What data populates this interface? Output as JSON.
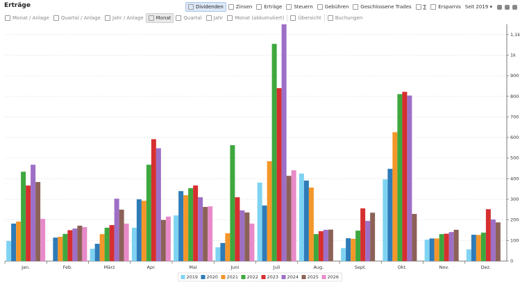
{
  "header": {
    "title": "Erträge"
  },
  "tabs": [
    "Dividenden",
    "Zinsen",
    "Erträge",
    "Steuern",
    "Gebühren",
    "Geschlossene Trades",
    "∑",
    "Ersparnis"
  ],
  "period": "Seit 2019",
  "views": [
    "Monat / Anlage",
    "Quartal / Anlage",
    "Jahr / Anlage",
    "Monat",
    "Quartal",
    "Jahr",
    "Monat (akkumuliert)",
    "Übersicht",
    "Buchungen"
  ],
  "chart_data": {
    "type": "bar",
    "categories": [
      "Jan.",
      "Feb.",
      "März",
      "Apr.",
      "Mai",
      "Juni",
      "Juli",
      "Aug.",
      "Sept.",
      "Okt.",
      "Nov.",
      "Dez."
    ],
    "series": [
      {
        "name": "2019",
        "color": "#7fd3f2",
        "values": [
          98,
          null,
          60,
          162,
          222,
          67,
          381,
          425,
          63,
          397,
          104,
          57
        ]
      },
      {
        "name": "2020",
        "color": "#2e7bb8",
        "values": [
          182,
          114,
          84,
          300,
          340,
          88,
          270,
          391,
          111,
          448,
          110,
          128
        ]
      },
      {
        "name": "2021",
        "color": "#f5962a",
        "values": [
          192,
          118,
          131,
          293,
          320,
          135,
          485,
          357,
          108,
          626,
          110,
          127
        ]
      },
      {
        "name": "2022",
        "color": "#3ea83e",
        "values": [
          434,
          132,
          162,
          468,
          354,
          563,
          1055,
          131,
          148,
          811,
          131,
          138
        ]
      },
      {
        "name": "2023",
        "color": "#d62f2f",
        "values": [
          367,
          150,
          175,
          592,
          367,
          310,
          840,
          145,
          256,
          822,
          133,
          252
        ]
      },
      {
        "name": "2024",
        "color": "#9d6fc6",
        "values": [
          468,
          158,
          303,
          548,
          310,
          246,
          1150,
          152,
          195,
          804,
          141,
          202
        ]
      },
      {
        "name": "2025",
        "color": "#8c6258",
        "values": [
          384,
          172,
          250,
          200,
          263,
          236,
          414,
          153,
          235,
          229,
          152,
          188
        ]
      },
      {
        "name": "2026",
        "color": "#e88ac9",
        "values": [
          205,
          165,
          182,
          216,
          266,
          182,
          441,
          null,
          null,
          null,
          null,
          null
        ]
      }
    ],
    "ylim": [
      0,
      1150
    ],
    "yticks": [
      0,
      100,
      200,
      300,
      400,
      500,
      600,
      700,
      800,
      900,
      {
        "value": 1000,
        "label": "1k"
      },
      {
        "value": 1100,
        "label": "1,1k"
      }
    ],
    "grid": true,
    "legend": "bottom"
  }
}
